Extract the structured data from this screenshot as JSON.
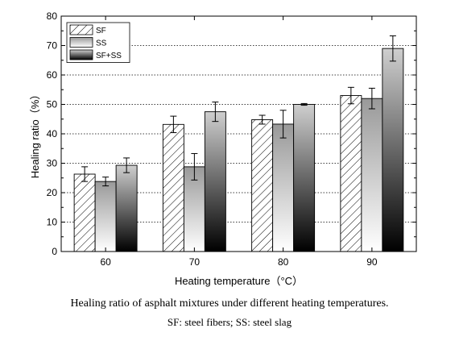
{
  "chart_data": {
    "type": "bar",
    "xlabel": "Heating temperature（°C）",
    "ylabel": "Healing ratio（%）",
    "categories": [
      "60",
      "70",
      "80",
      "90"
    ],
    "ylim": [
      0,
      80
    ],
    "yticks": [
      0,
      10,
      20,
      30,
      40,
      50,
      60,
      70,
      80
    ],
    "grid": "horizontal dotted",
    "legend_position": "top-left",
    "series": [
      {
        "name": "SF",
        "fill": "hatched",
        "values": [
          26.3,
          43.2,
          44.8,
          53.0
        ],
        "errors": [
          2.5,
          2.8,
          1.5,
          2.8
        ]
      },
      {
        "name": "SS",
        "fill": "light-gradient",
        "values": [
          23.8,
          28.8,
          43.3,
          52.0
        ],
        "errors": [
          1.5,
          4.5,
          4.7,
          3.5
        ]
      },
      {
        "name": "SF+SS",
        "fill": "dark-gradient",
        "values": [
          29.3,
          47.5,
          50.0,
          69.0
        ],
        "errors": [
          2.5,
          3.3,
          0.3,
          4.3
        ]
      }
    ]
  },
  "caption": {
    "line1": "Healing ratio of asphalt mixtures under different heating temperatures.",
    "line2": "SF: steel fibers; SS: steel slag"
  }
}
